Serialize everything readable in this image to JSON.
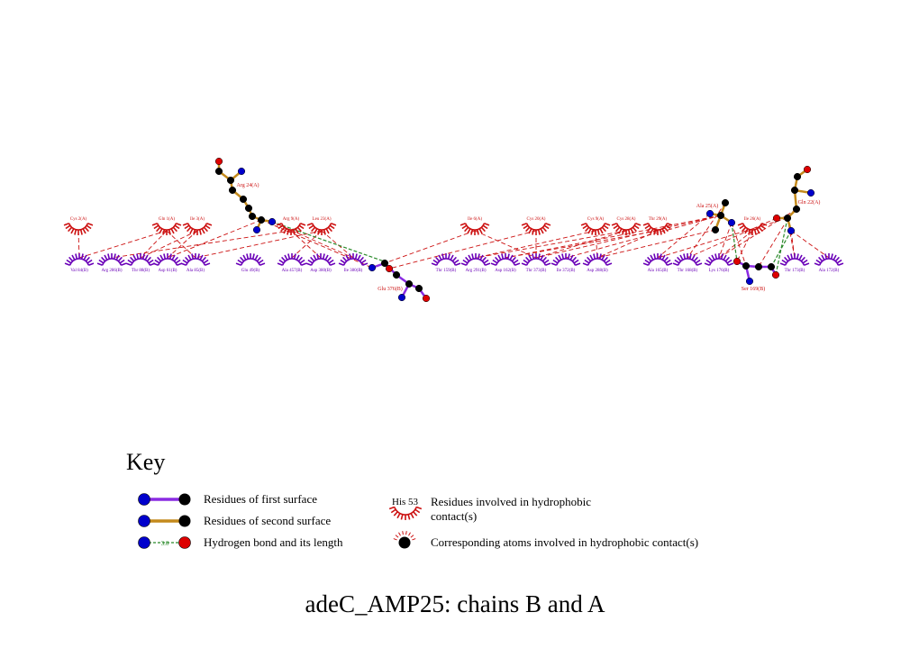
{
  "diagram": {
    "type": "ligplot-dimplot",
    "colors": {
      "first_surface_residue": "#6a00b8",
      "second_surface_residue": "#cc1111",
      "second_surface_bond": "#c48a1c",
      "first_surface_bond": "#8a2be2",
      "hbond": "#2a8a2a",
      "contact_line": "#cc1111",
      "oxygen": "#dd0000",
      "nitrogen": "#0000cc",
      "carbon": "#000000"
    },
    "chain_a_residues": [
      "Cys 2(A)",
      "Gln 1(A)",
      "Ile 3(A)",
      "Arg 9(A)",
      "Leu 23(A)",
      "Ile 6(A)",
      "Cys 20(A)",
      "Cys 9(A)",
      "Cys 28(A)",
      "Thr 29(A)",
      "Ile 26(A)"
    ],
    "chain_b_residues": [
      "Val 84(B)",
      "Arg 286(B)",
      "Thr 88(B)",
      "Asp 61(B)",
      "Ala 85(B)",
      "Glu 49(B)",
      "Ala 457(B)",
      "Asp 380(B)",
      "Ile 380(B)",
      "Thr 159(B)",
      "Arg 291(B)",
      "Asp 162(B)",
      "Thr 373(B)",
      "Ile 372(B)",
      "Asp 288(B)",
      "Ala 165(B)",
      "Thr 168(B)",
      "Lys 176(B)",
      "Thr 173(B)",
      "Ala 172(B)"
    ],
    "ligand_labels": [
      "Arg 24(A)",
      "Ala 25(A)",
      "Gln 22(A)",
      "Glu 376(B)",
      "Ser 169(B)"
    ]
  },
  "key": {
    "title": "Key",
    "first_surface": "Residues of first surface",
    "second_surface": "Residues of second surface",
    "hbond": "Hydrogen bond and its length",
    "hbond_length": "3.0",
    "hydrophobic_example": "His 53",
    "hydrophobic_residues": "Residues involved in hydrophobic contact(s)",
    "hydrophobic_atoms": "Corresponding atoms involved in hydrophobic contact(s)"
  },
  "figure_title": "adeC_AMP25: chains B and A"
}
